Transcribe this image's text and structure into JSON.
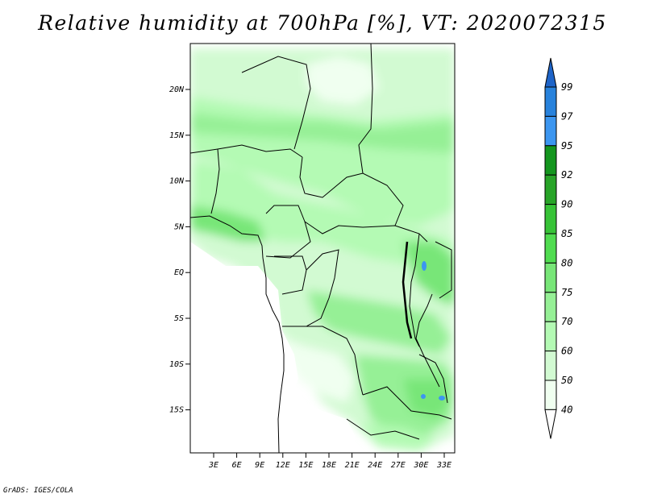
{
  "title": "Relative humidity at 700hPa [%], VT: 2020072315",
  "credit": "GrADS: IGES/COLA",
  "map": {
    "lat_labels": [
      "20N",
      "15N",
      "10N",
      "5N",
      "EQ",
      "5S",
      "10S",
      "15S"
    ],
    "lon_labels": [
      "3E",
      "6E",
      "9E",
      "12E",
      "15E",
      "18E",
      "21E",
      "24E",
      "27E",
      "30E",
      "33E"
    ]
  },
  "colorbar": {
    "levels": [
      "99",
      "97",
      "95",
      "92",
      "90",
      "85",
      "80",
      "75",
      "70",
      "60",
      "50",
      "40"
    ],
    "colors": [
      "#1e64c8",
      "#2882dc",
      "#3c96f0",
      "#14961e",
      "#28a428",
      "#37c337",
      "#50dc50",
      "#78e678",
      "#96f096",
      "#b4fab4",
      "#d2fad2",
      "#f0fff0"
    ]
  }
}
